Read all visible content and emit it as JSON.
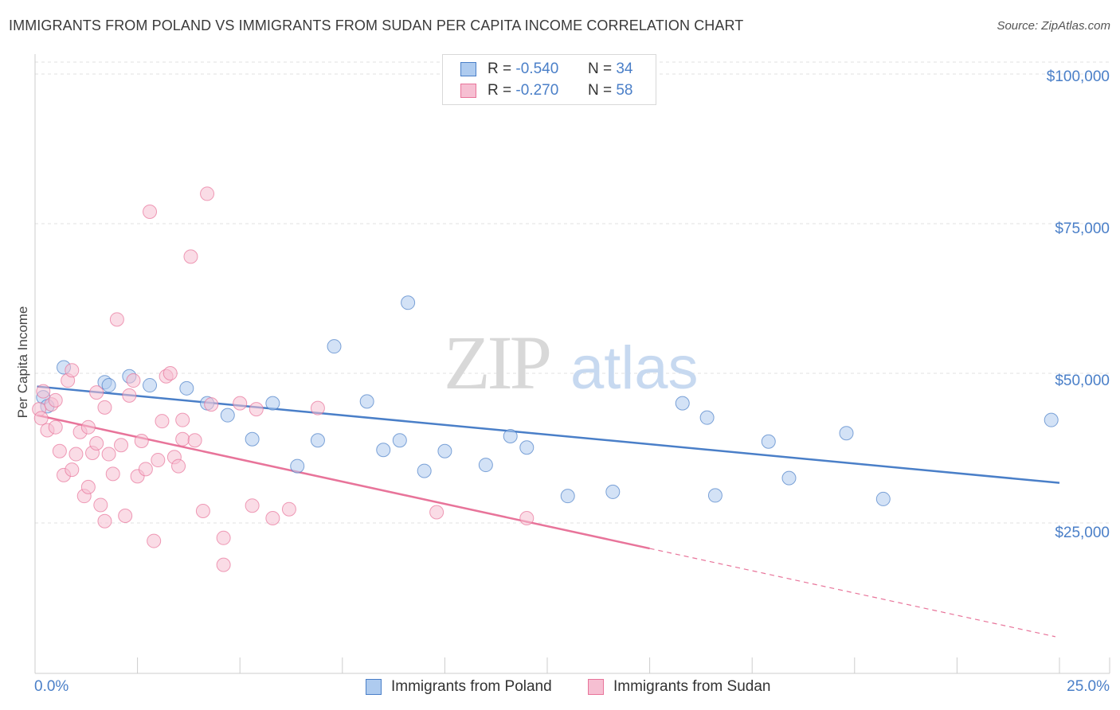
{
  "header": {
    "title": "IMMIGRANTS FROM POLAND VS IMMIGRANTS FROM SUDAN PER CAPITA INCOME CORRELATION CHART",
    "source": "Source: ZipAtlas.com"
  },
  "watermark": {
    "zip": "ZIP",
    "atlas": "atlas"
  },
  "colors": {
    "poland": "#4a7fc8",
    "poland_fill": "#aecbef",
    "sudan": "#e8749a",
    "sudan_fill": "#f6bfd2",
    "tick_label": "#4a7fc8",
    "grid": "#e2e2e2"
  },
  "legend": {
    "rows": [
      {
        "r_label": "R =",
        "r_value": "-0.540",
        "n_label": "N =",
        "n_value": "34"
      },
      {
        "r_label": "R =",
        "r_value": "-0.270",
        "n_label": "N =",
        "n_value": "58"
      }
    ]
  },
  "chart_data": {
    "type": "scatter",
    "title": "IMMIGRANTS FROM POLAND VS IMMIGRANTS FROM SUDAN PER CAPITA INCOME CORRELATION CHART",
    "xlabel": "",
    "ylabel": "Per Capita Income",
    "xlim": [
      0,
      25
    ],
    "ylim": [
      0,
      102000
    ],
    "x_tick_labels": [
      "0.0%",
      "25.0%"
    ],
    "y_ticks": [
      25000,
      50000,
      75000,
      100000
    ],
    "y_tick_labels": [
      "$25,000",
      "$50,000",
      "$75,000",
      "$100,000"
    ],
    "grid": true,
    "legend_position": "top-center",
    "series": [
      {
        "name": "Immigrants from Poland",
        "r": -0.54,
        "n": 34,
        "trend": {
          "x0": 0.05,
          "y0": 47800,
          "x1": 25.0,
          "y1": 31700,
          "dashed_from": null
        },
        "points": [
          [
            0.2,
            46000
          ],
          [
            0.3,
            44500
          ],
          [
            0.7,
            51000
          ],
          [
            1.7,
            48500
          ],
          [
            1.8,
            48000
          ],
          [
            2.3,
            49500
          ],
          [
            2.8,
            48000
          ],
          [
            3.7,
            47500
          ],
          [
            4.2,
            45000
          ],
          [
            4.7,
            43000
          ],
          [
            5.3,
            39000
          ],
          [
            5.8,
            45000
          ],
          [
            6.4,
            34500
          ],
          [
            6.9,
            38800
          ],
          [
            7.3,
            54500
          ],
          [
            8.1,
            45300
          ],
          [
            8.5,
            37200
          ],
          [
            8.9,
            38800
          ],
          [
            9.1,
            61800
          ],
          [
            9.5,
            33700
          ],
          [
            10.0,
            37000
          ],
          [
            11.0,
            34700
          ],
          [
            11.6,
            39500
          ],
          [
            12.0,
            37600
          ],
          [
            13.0,
            29500
          ],
          [
            14.1,
            30200
          ],
          [
            15.8,
            45000
          ],
          [
            16.4,
            42600
          ],
          [
            16.6,
            29600
          ],
          [
            17.9,
            38600
          ],
          [
            18.4,
            32500
          ],
          [
            19.8,
            40000
          ],
          [
            20.7,
            29000
          ],
          [
            24.8,
            42200
          ]
        ]
      },
      {
        "name": "Immigrants from Sudan",
        "r": -0.27,
        "n": 58,
        "trend": {
          "x0": 0.05,
          "y0": 43000,
          "x1": 24.9,
          "y1": 6000,
          "dashed_from": 15.0
        },
        "points": [
          [
            0.1,
            44000
          ],
          [
            0.15,
            42500
          ],
          [
            0.2,
            47000
          ],
          [
            0.3,
            40500
          ],
          [
            0.4,
            44800
          ],
          [
            0.5,
            45500
          ],
          [
            0.5,
            41000
          ],
          [
            0.6,
            37000
          ],
          [
            0.7,
            33000
          ],
          [
            0.8,
            48800
          ],
          [
            0.9,
            50500
          ],
          [
            1.0,
            36500
          ],
          [
            1.1,
            40200
          ],
          [
            1.2,
            29500
          ],
          [
            1.3,
            31000
          ],
          [
            1.3,
            41000
          ],
          [
            1.4,
            36700
          ],
          [
            1.5,
            46800
          ],
          [
            1.6,
            28000
          ],
          [
            1.7,
            44300
          ],
          [
            1.7,
            25300
          ],
          [
            1.8,
            36500
          ],
          [
            1.9,
            33200
          ],
          [
            2.0,
            59000
          ],
          [
            2.1,
            38000
          ],
          [
            2.3,
            46300
          ],
          [
            2.4,
            48800
          ],
          [
            2.5,
            32800
          ],
          [
            2.6,
            38700
          ],
          [
            2.7,
            34000
          ],
          [
            2.8,
            77000
          ],
          [
            2.9,
            22000
          ],
          [
            3.0,
            35500
          ],
          [
            3.1,
            42000
          ],
          [
            3.2,
            49500
          ],
          [
            3.3,
            50000
          ],
          [
            3.4,
            36000
          ],
          [
            3.5,
            34500
          ],
          [
            3.6,
            39000
          ],
          [
            3.8,
            69500
          ],
          [
            3.9,
            38800
          ],
          [
            4.1,
            27000
          ],
          [
            4.2,
            80000
          ],
          [
            4.3,
            44800
          ],
          [
            4.6,
            18000
          ],
          [
            4.6,
            22500
          ],
          [
            5.0,
            45000
          ],
          [
            5.3,
            27900
          ],
          [
            5.4,
            44000
          ],
          [
            5.8,
            25800
          ],
          [
            6.2,
            27300
          ],
          [
            6.9,
            44200
          ],
          [
            9.8,
            26800
          ],
          [
            12.0,
            25800
          ],
          [
            1.5,
            38300
          ],
          [
            2.2,
            26200
          ],
          [
            0.9,
            33900
          ],
          [
            3.6,
            42200
          ]
        ]
      }
    ]
  },
  "bottom_legend": {
    "items": [
      {
        "label": "Immigrants from Poland"
      },
      {
        "label": "Immigrants from Sudan"
      }
    ]
  }
}
